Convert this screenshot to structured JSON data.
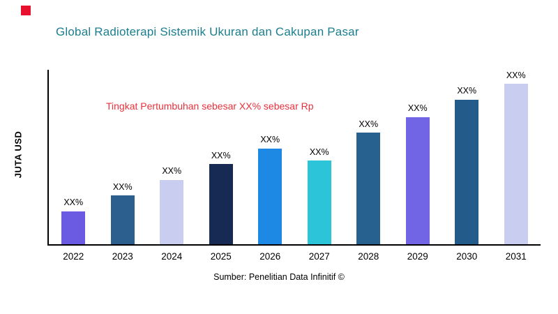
{
  "title": "Global Radioterapi Sistemik Ukuran dan Cakupan Pasar",
  "annotation": "Tingkat Pertumbuhan sebesar XX% sebesar Rp",
  "ylabel": "JUTA USD",
  "source": "Sumber: Penelitian Data Infinitif ©",
  "colors": {
    "brand_square": "#E8112D",
    "title": "#1B7E8F",
    "annotation": "#E8303C",
    "axis": "#000000",
    "background": "#FFFFFF"
  },
  "chart_data": {
    "type": "bar",
    "title": "Global Radioterapi Sistemik Ukuran dan Cakupan Pasar",
    "xlabel": "",
    "ylabel": "JUTA USD",
    "ylim": [
      0,
      100
    ],
    "grid": false,
    "legend": false,
    "categories": [
      "2022",
      "2023",
      "2024",
      "2025",
      "2026",
      "2027",
      "2028",
      "2029",
      "2030",
      "2031"
    ],
    "values": [
      19,
      28,
      37,
      46,
      55,
      48,
      64,
      73,
      83,
      92
    ],
    "data_labels": [
      "XX%",
      "XX%",
      "XX%",
      "XX%",
      "XX%",
      "XX%",
      "XX%",
      "XX%",
      "XX%",
      "XX%"
    ],
    "bar_colors": [
      "#6A5BE2",
      "#2C5F8E",
      "#C9CEF0",
      "#172A54",
      "#1E88E5",
      "#2BC4D9",
      "#27618F",
      "#7165E6",
      "#235C8A",
      "#C9CEF0"
    ],
    "annotation": "Tingkat Pertumbuhan sebesar XX% sebesar Rp"
  }
}
